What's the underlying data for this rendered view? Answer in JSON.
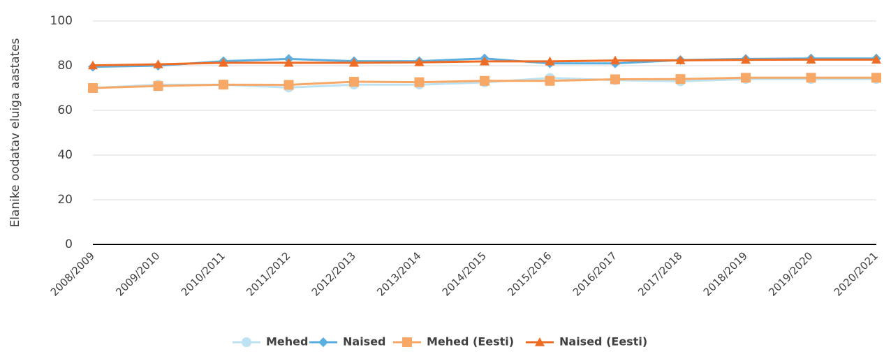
{
  "chart_data": {
    "type": "line",
    "y_label": "Elanike oodatav eluiga aastates",
    "categories": [
      "2008/2009",
      "2009/2010",
      "2010/2011",
      "2011/2012",
      "2012/2013",
      "2013/2014",
      "2014/2015",
      "2015/2016",
      "2016/2017",
      "2017/2018",
      "2018/2019",
      "2019/2020",
      "2020/2021"
    ],
    "series": [
      {
        "name": "Mehed",
        "color": "#bde3f3",
        "marker": "circle",
        "values": [
          70,
          71.5,
          71.5,
          70.2,
          71.5,
          71.5,
          72.5,
          74.5,
          73.5,
          73,
          74,
          74,
          74
        ]
      },
      {
        "name": "Naised",
        "color": "#5aaee0",
        "marker": "diamond",
        "values": [
          79.5,
          80,
          82,
          83,
          82,
          82,
          83.2,
          81,
          81,
          82.5,
          83,
          83.2,
          83.2
        ]
      },
      {
        "name": "Mehed (Eesti)",
        "color": "#f7a867",
        "marker": "square",
        "values": [
          70,
          70.9,
          71.5,
          71.4,
          72.8,
          72.6,
          73.2,
          73.2,
          73.9,
          74,
          74.6,
          74.6,
          74.6
        ]
      },
      {
        "name": "Naised (Eesti)",
        "color": "#ef6c24",
        "marker": "triangle",
        "values": [
          80.1,
          80.6,
          81.3,
          81.3,
          81.3,
          81.5,
          81.9,
          81.9,
          82.3,
          82.4,
          82.6,
          82.7,
          82.7
        ]
      }
    ],
    "ylim": [
      0,
      100
    ],
    "yticks": [
      0,
      20,
      40,
      60,
      80,
      100
    ],
    "grid": true,
    "legend": "bottom"
  }
}
